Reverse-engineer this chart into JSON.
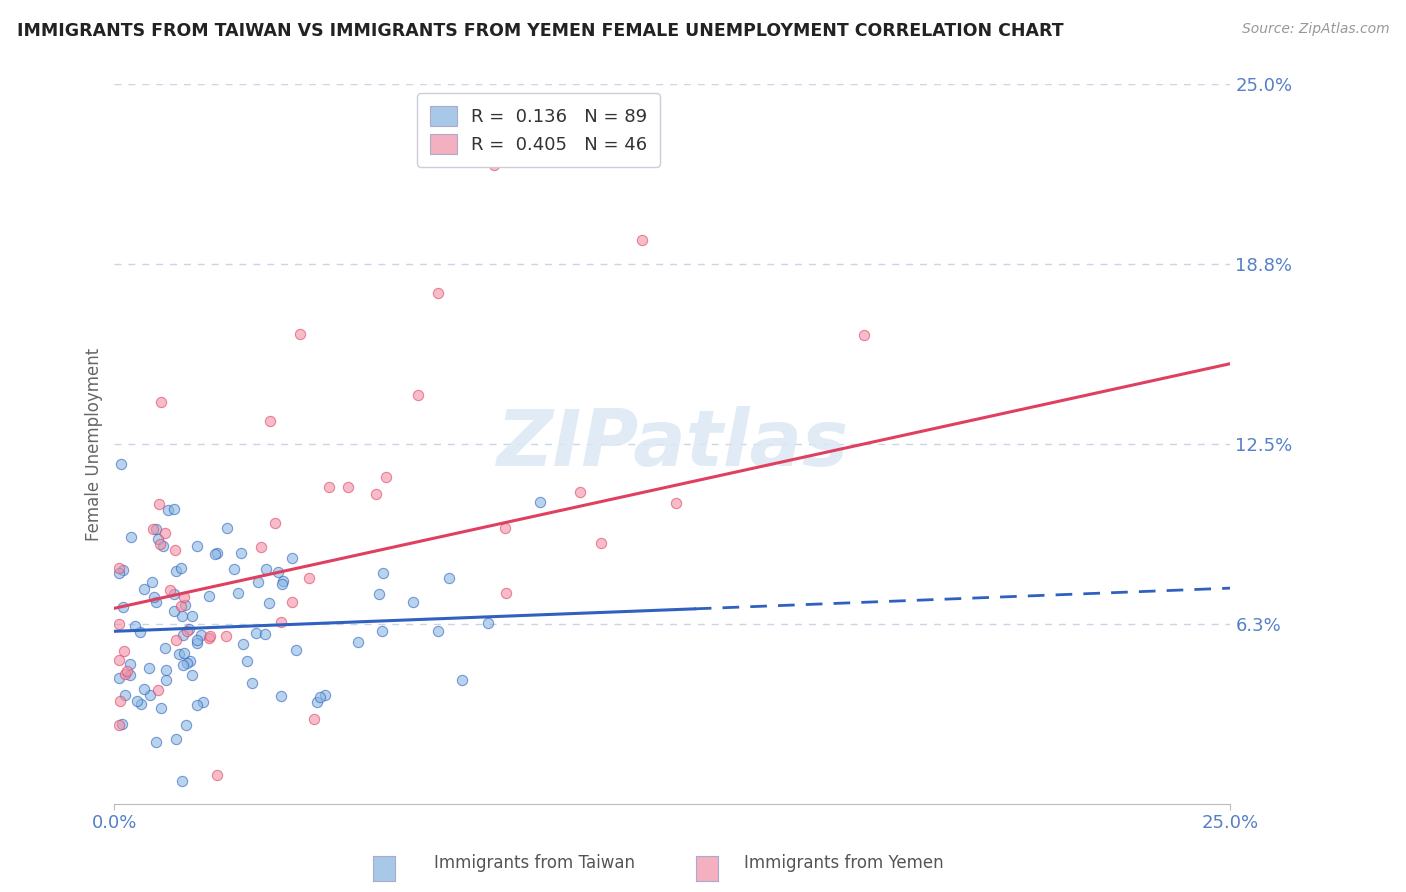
{
  "title": "IMMIGRANTS FROM TAIWAN VS IMMIGRANTS FROM YEMEN FEMALE UNEMPLOYMENT CORRELATION CHART",
  "source": "Source: ZipAtlas.com",
  "ylabel": "Female Unemployment",
  "x_min": 0.0,
  "x_max": 0.25,
  "y_min": 0.0,
  "y_max": 0.25,
  "y_ticks": [
    0.0625,
    0.125,
    0.1875,
    0.25
  ],
  "y_tick_labels": [
    "6.3%",
    "12.5%",
    "18.8%",
    "25.0%"
  ],
  "x_ticks": [
    0.0,
    0.25
  ],
  "x_tick_labels": [
    "0.0%",
    "25.0%"
  ],
  "taiwan_R": 0.136,
  "taiwan_N": 89,
  "yemen_R": 0.405,
  "yemen_N": 46,
  "taiwan_color": "#a8c8e8",
  "yemen_color": "#f4b0c0",
  "taiwan_line_color": "#3060c0",
  "yemen_line_color": "#e04060",
  "taiwan_dot_color": "#88b8e0",
  "yemen_dot_color": "#f090a8",
  "background_color": "#ffffff",
  "grid_color": "#c8d4e8",
  "title_color": "#222222",
  "label_color": "#5580c8",
  "watermark_color": "#dce8f4",
  "bottom_label_taiwan": "Immigrants from Taiwan",
  "bottom_label_yemen": "Immigrants from Yemen",
  "taiwan_line_solid_end": 0.13,
  "taiwan_line_dash_start": 0.13,
  "yemen_line_intercept": 0.068,
  "yemen_line_slope": 0.34,
  "taiwan_line_intercept": 0.06,
  "taiwan_line_slope": 0.06
}
